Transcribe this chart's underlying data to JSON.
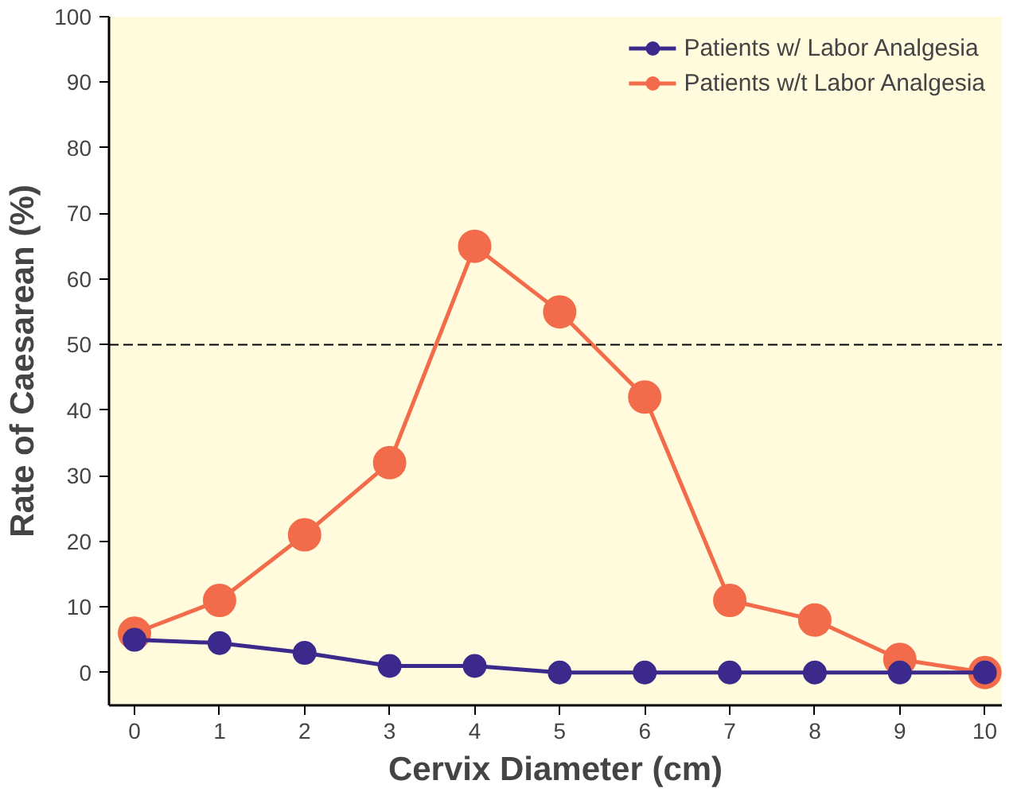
{
  "chart_data": {
    "type": "line",
    "xlabel": "Cervix Diameter (cm)",
    "ylabel": "Rate of Caesarean (%)",
    "x": [
      0,
      1,
      2,
      3,
      4,
      5,
      6,
      7,
      8,
      9,
      10
    ],
    "series": [
      {
        "name": "Patients w/ Labor Analgesia",
        "color": "#3b2a8c",
        "values": [
          5,
          4.5,
          3,
          1,
          1,
          0,
          0,
          0,
          0,
          0,
          0
        ]
      },
      {
        "name": "Patients w/t Labor Analgesia",
        "color": "#f26b4a",
        "values": [
          6,
          11,
          21,
          32,
          65,
          55,
          42,
          11,
          8,
          2,
          0
        ]
      }
    ],
    "xlim": [
      -0.3,
      10.2
    ],
    "ylim": [
      -5,
      100
    ],
    "xticks": [
      0,
      1,
      2,
      3,
      4,
      5,
      6,
      7,
      8,
      9,
      10
    ],
    "yticks": [
      0,
      10,
      20,
      30,
      40,
      50,
      60,
      70,
      80,
      90,
      100
    ],
    "ref_lines": [
      {
        "axis": "y",
        "value": 50,
        "color": "#000000",
        "line_style": "dashed"
      }
    ],
    "grid": false,
    "legend": "top right",
    "marker": "circle",
    "line_style": "solid"
  }
}
